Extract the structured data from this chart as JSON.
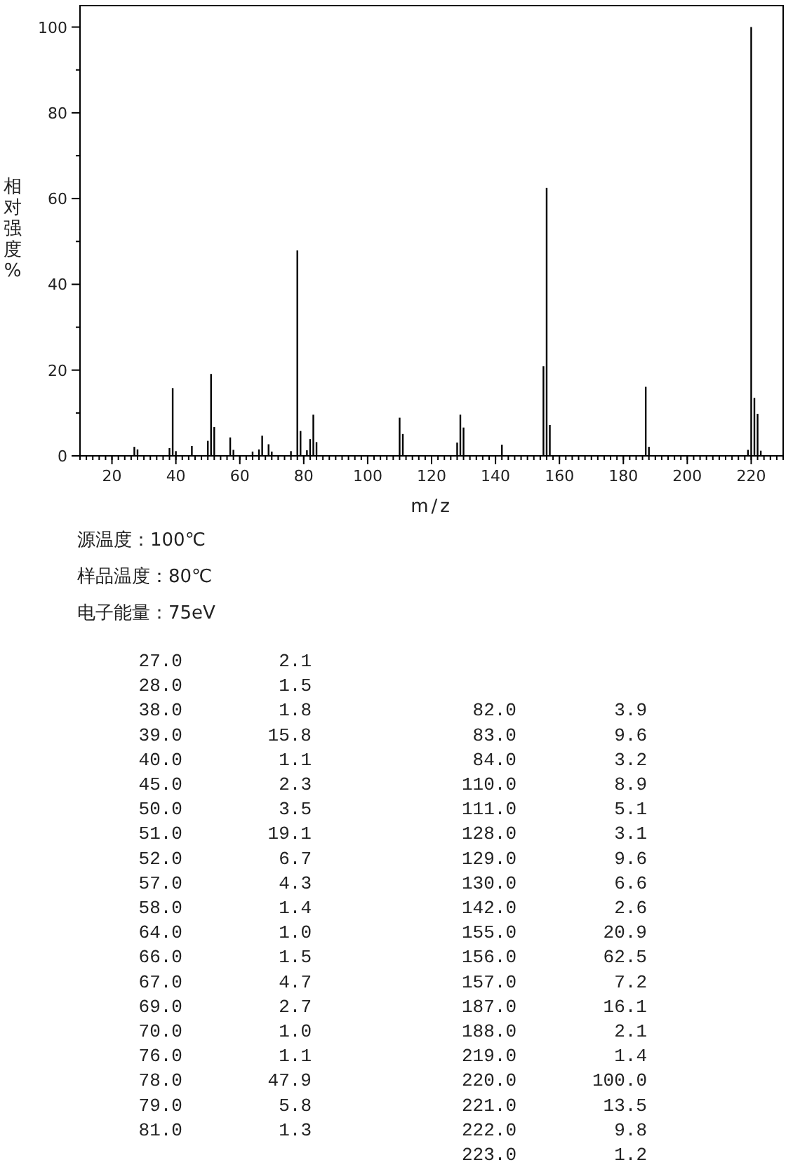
{
  "chart_data": [
    {
      "type": "bar",
      "xlabel": "m/z",
      "ylabel": "相对强度%",
      "x": [
        27,
        28,
        38,
        39,
        40,
        45,
        50,
        51,
        52,
        57,
        58,
        64,
        66,
        67,
        69,
        70,
        76,
        78,
        79,
        81,
        82,
        83,
        84,
        110,
        111,
        128,
        129,
        130,
        142,
        155,
        156,
        157,
        187,
        188,
        219,
        220,
        221,
        222,
        223
      ],
      "values": [
        2.1,
        1.5,
        1.8,
        15.8,
        1.1,
        2.3,
        3.5,
        19.1,
        6.7,
        4.3,
        1.4,
        1.0,
        1.5,
        4.7,
        2.7,
        1.0,
        1.1,
        47.9,
        5.8,
        1.3,
        3.9,
        9.6,
        3.2,
        8.9,
        5.1,
        3.1,
        9.6,
        6.6,
        2.6,
        20.9,
        62.5,
        7.2,
        16.1,
        2.1,
        1.4,
        100.0,
        13.5,
        9.8,
        1.2
      ],
      "color": "#000000",
      "xlim": [
        10,
        230
      ],
      "xticks": [
        20,
        40,
        60,
        80,
        100,
        120,
        140,
        160,
        180,
        200,
        220
      ],
      "ylim": [
        0,
        105
      ],
      "yticks": [
        0,
        20,
        40,
        60,
        80,
        100
      ],
      "grid": false,
      "annotations": [
        "源温度：100℃",
        "样品温度：80℃",
        "电子能量：75eV"
      ]
    },
    {
      "type": "other",
      "annotations": [
        "27.0",
        "2.1",
        "28.0",
        "1.5",
        "38.0",
        "1.8",
        "39.0",
        "15.8",
        "40.0",
        "1.1",
        "45.0",
        "2.3",
        "50.0",
        "3.5",
        "51.0",
        "19.1",
        "52.0",
        "6.7",
        "57.0",
        "4.3",
        "58.0",
        "1.4",
        "64.0",
        "1.0",
        "66.0",
        "1.5",
        "67.0",
        "4.7",
        "69.0",
        "2.7",
        "70.0",
        "1.0",
        "76.0",
        "1.1",
        "78.0",
        "47.9",
        "79.0",
        "5.8",
        "81.0",
        "1.3",
        "82.0",
        "3.9",
        "83.0",
        "9.6",
        "84.0",
        "3.2",
        "110.0",
        "8.9",
        "111.0",
        "5.1",
        "128.0",
        "3.1",
        "129.0",
        "9.6",
        "130.0",
        "6.6",
        "142.0",
        "2.6",
        "155.0",
        "20.9",
        "156.0",
        "62.5",
        "157.0",
        "7.2",
        "187.0",
        "16.1",
        "188.0",
        "2.1",
        "219.0",
        "1.4",
        "220.0",
        "100.0",
        "221.0",
        "13.5",
        "222.0",
        "9.8",
        "223.0",
        "1.2"
      ]
    }
  ]
}
